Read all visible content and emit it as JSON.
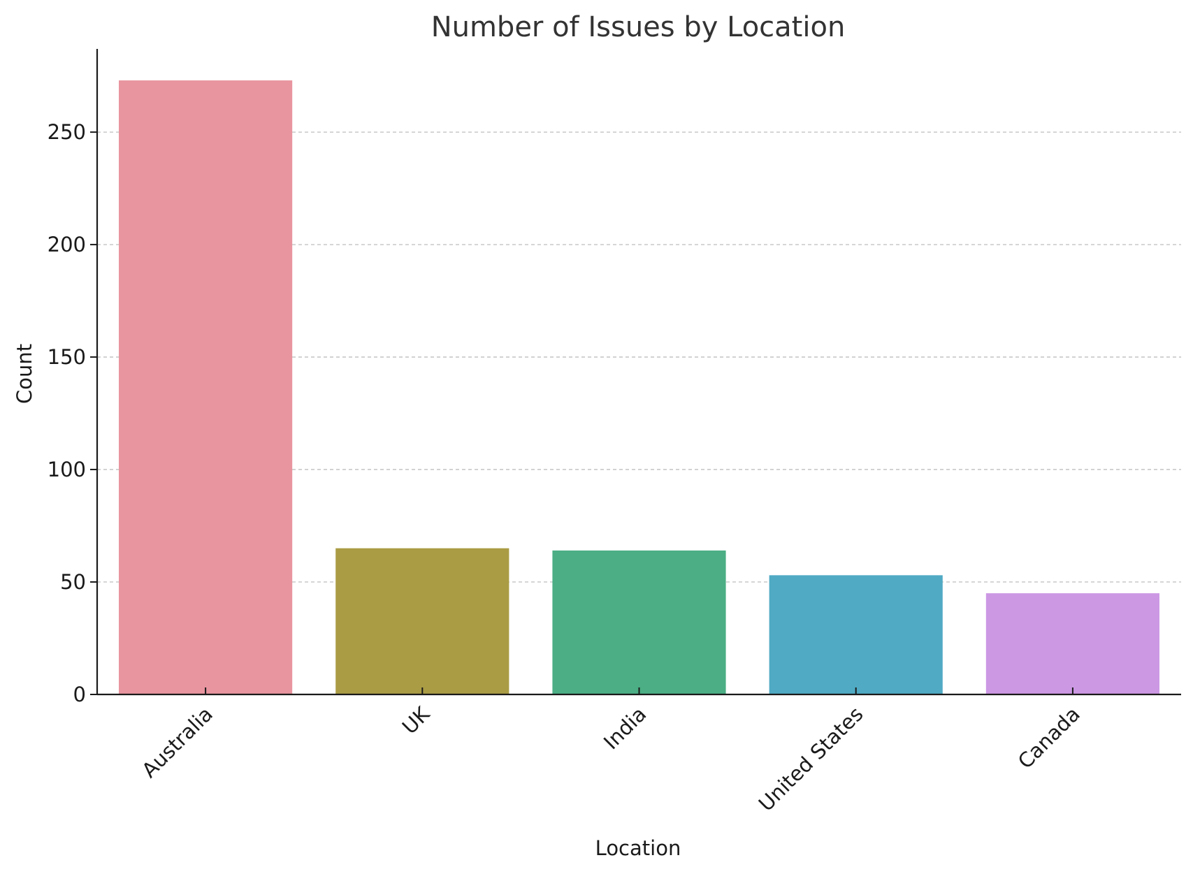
{
  "chart_data": {
    "type": "bar",
    "title": "Number of Issues by Location",
    "xlabel": "Location",
    "ylabel": "Count",
    "categories": [
      "Australia",
      "UK",
      "India",
      "United States",
      "Canada"
    ],
    "values": [
      273,
      65,
      64,
      53,
      45
    ],
    "colors": [
      "#e8959f",
      "#aa9c45",
      "#4bae84",
      "#50aac4",
      "#cc98e4"
    ],
    "ylim": [
      0,
      287
    ],
    "yticks": [
      0,
      50,
      100,
      150,
      200,
      250
    ],
    "grid": true,
    "grid_axis": "y",
    "legend": false
  }
}
